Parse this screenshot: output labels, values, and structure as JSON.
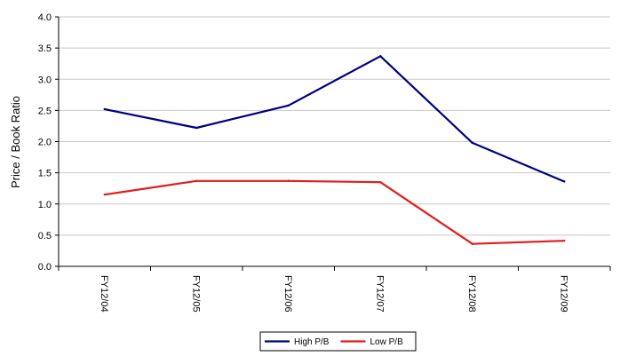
{
  "chart_data": {
    "type": "line",
    "categories": [
      "FY12/04",
      "FY12/05",
      "FY12/06",
      "FY12/07",
      "FY12/08",
      "FY12/09"
    ],
    "series": [
      {
        "name": "High P/B",
        "color": "#000080",
        "values": [
          2.52,
          2.22,
          2.58,
          3.37,
          1.98,
          1.36
        ]
      },
      {
        "name": "Low P/B",
        "color": "#e31a1c",
        "values": [
          1.15,
          1.37,
          1.37,
          1.35,
          0.36,
          0.41
        ]
      }
    ],
    "title": "",
    "xlabel": "",
    "ylabel": "Price / Book Ratio",
    "ylim": [
      0,
      4
    ],
    "yticks": [
      "0.0",
      "0.5",
      "1.0",
      "1.5",
      "2.0",
      "2.5",
      "3.0",
      "3.5",
      "4.0"
    ],
    "grid": "horizontal",
    "legend": "bottom-center"
  }
}
